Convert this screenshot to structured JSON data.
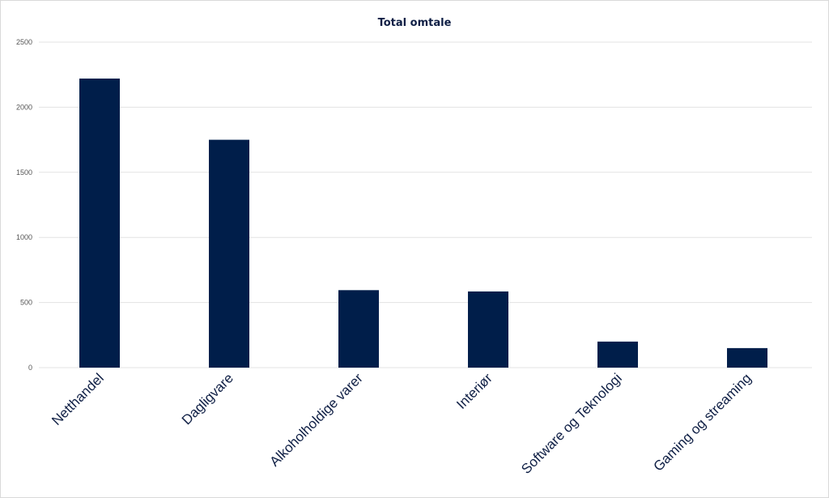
{
  "chart_data": {
    "type": "bar",
    "title": "Total omtale",
    "xlabel": "",
    "ylabel": "",
    "categories": [
      "Netthandel",
      "Dagligvare",
      "Alkoholholdige varer",
      "Interiør",
      "Software og Teknologi",
      "Gaming og streaming"
    ],
    "values": [
      2220,
      1750,
      595,
      585,
      200,
      150
    ],
    "ylim": [
      0,
      2500
    ],
    "yticks": [
      0,
      500,
      1000,
      1500,
      2000,
      2500
    ],
    "grid": true,
    "bar_color": "#001e4a"
  }
}
